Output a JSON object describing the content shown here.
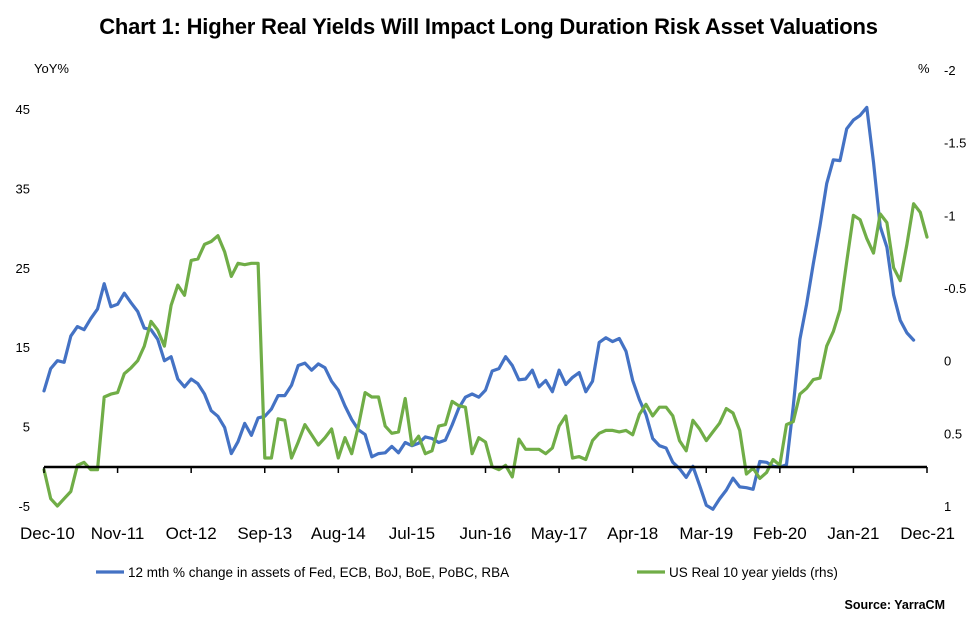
{
  "chart_data": {
    "type": "line",
    "title": "Chart 1: Higher Real Yields Will Impact Long Duration Risk Asset Valuations",
    "y_left_label": "YoY%",
    "y_right_label": "%",
    "y_left_range": [
      -5,
      50
    ],
    "y_left_ticks": [
      "45",
      "35",
      "25",
      "15",
      "5",
      "-5"
    ],
    "y_right_range_top_to_bottom": [
      -2,
      1
    ],
    "y_right_inverted": true,
    "y_right_ticks": [
      "-2",
      "-1.5",
      "-1",
      "-0.5",
      "0",
      "0.5",
      "1"
    ],
    "x_tick_labels": [
      "Dec-10",
      "Nov-11",
      "Oct-12",
      "Sep-13",
      "Aug-14",
      "Jul-15",
      "Jun-16",
      "May-17",
      "Apr-18",
      "Mar-19",
      "Feb-20",
      "Jan-21",
      "Dec-21"
    ],
    "x_axis_zero_line_at_left_value": 0,
    "legend_position": "bottom",
    "source": "Source: YarraCM",
    "series": [
      {
        "name": "12 mth % change in assets of Fed, ECB, BoJ, BoE, PoBC, RBA",
        "axis": "left",
        "color": "#4472C4",
        "x_months": [
          0,
          1,
          2,
          3,
          4,
          5,
          6,
          7,
          8,
          9,
          10,
          11,
          12,
          13,
          14,
          15,
          16,
          17,
          18,
          19,
          20,
          21,
          22,
          23,
          24,
          25,
          26,
          27,
          28,
          29,
          30,
          31,
          32,
          33,
          34,
          35,
          36,
          37,
          38,
          39,
          40,
          41,
          42,
          43,
          44,
          45,
          46,
          47,
          48,
          49,
          50,
          51,
          52,
          53,
          54,
          55,
          56,
          57,
          58,
          59,
          60,
          61,
          62,
          63,
          64,
          65,
          66,
          67,
          68,
          69,
          70,
          71,
          72,
          73,
          74,
          75,
          76,
          77,
          78,
          79,
          80,
          81,
          82,
          83,
          84,
          85,
          86,
          87,
          88,
          89,
          90,
          91,
          92,
          93,
          94,
          95,
          96,
          97,
          98,
          99,
          100,
          101,
          102,
          103,
          104,
          105,
          106,
          107,
          108,
          109,
          110,
          111,
          112,
          113,
          114,
          115,
          116,
          117,
          118,
          119,
          120,
          121,
          122,
          123,
          124,
          125,
          126,
          127,
          128,
          129,
          130
        ],
        "values": [
          9.5,
          12.3,
          13.3,
          13.1,
          16.4,
          17.6,
          17.2,
          18.6,
          19.8,
          23.0,
          20.1,
          20.4,
          21.8,
          20.6,
          19.5,
          17.4,
          17.2,
          16.0,
          13.3,
          13.8,
          11.0,
          10.0,
          11.0,
          10.4,
          9.1,
          7.0,
          6.3,
          4.9,
          1.6,
          3.1,
          5.4,
          3.9,
          6.1,
          6.3,
          7.2,
          8.9,
          8.9,
          10.2,
          12.7,
          13.0,
          12.1,
          12.9,
          12.4,
          10.7,
          9.6,
          7.6,
          5.9,
          4.6,
          4.0,
          1.2,
          1.6,
          1.7,
          2.5,
          1.7,
          3.0,
          2.6,
          2.9,
          3.7,
          3.5,
          3.0,
          3.3,
          5.2,
          7.3,
          8.7,
          9.1,
          8.7,
          9.6,
          12.0,
          12.3,
          13.8,
          12.7,
          10.9,
          11.0,
          12.1,
          10.0,
          10.8,
          9.4,
          12.1,
          10.3,
          11.2,
          11.8,
          9.4,
          10.7,
          15.6,
          16.2,
          15.7,
          16.1,
          14.5,
          10.8,
          8.4,
          6.5,
          3.5,
          2.6,
          2.3,
          0.5,
          -0.3,
          -1.4,
          0.0,
          -2.4,
          -4.9,
          -5.4,
          -4.1,
          -3.0,
          -1.5,
          -2.6,
          -2.7,
          -2.9,
          0.6,
          0.5,
          0.0,
          -0.1,
          0.2,
          7.5,
          16.0,
          20.4,
          25.5,
          30.3,
          35.6,
          38.6,
          38.5,
          42.5,
          43.6,
          44.2,
          45.2,
          38.3,
          30.2,
          27.6,
          21.6,
          18.4,
          16.8,
          15.9
        ]
      },
      {
        "name": "US Real 10 year yields (rhs)",
        "axis": "right",
        "color": "#70AD47",
        "x_months": [
          0,
          1,
          2,
          3,
          4,
          5,
          6,
          7,
          8,
          9,
          10,
          11,
          12,
          13,
          14,
          15,
          16,
          17,
          18,
          19,
          20,
          21,
          22,
          23,
          24,
          25,
          26,
          27,
          28,
          29,
          30,
          31,
          32,
          33,
          34,
          35,
          36,
          37,
          38,
          39,
          40,
          41,
          42,
          43,
          44,
          45,
          46,
          47,
          48,
          49,
          50,
          51,
          52,
          53,
          54,
          55,
          56,
          57,
          58,
          59,
          60,
          61,
          62,
          63,
          64,
          65,
          66,
          67,
          68,
          69,
          70,
          71,
          72,
          73,
          74,
          75,
          76,
          77,
          78,
          79,
          80,
          81,
          82,
          83,
          84,
          85,
          86,
          87,
          88,
          89,
          90,
          91,
          92,
          93,
          94,
          95,
          96,
          97,
          98,
          99,
          100,
          101,
          102,
          103,
          104,
          105,
          106,
          107,
          108,
          109,
          110,
          111,
          112,
          113,
          114,
          115,
          116,
          117,
          118,
          119,
          120,
          121,
          122,
          123,
          124,
          125,
          126,
          127,
          128,
          129,
          130,
          131,
          132
        ],
        "values": [
          0.75,
          0.95,
          1.0,
          0.95,
          0.9,
          0.72,
          0.7,
          0.75,
          0.75,
          0.25,
          0.23,
          0.22,
          0.09,
          0.05,
          0.0,
          -0.1,
          -0.27,
          -0.21,
          -0.1,
          -0.38,
          -0.52,
          -0.45,
          -0.69,
          -0.7,
          -0.8,
          -0.82,
          -0.86,
          -0.75,
          -0.58,
          -0.67,
          -0.66,
          -0.67,
          -0.67,
          0.67,
          0.67,
          0.4,
          0.41,
          0.67,
          0.56,
          0.44,
          0.51,
          0.58,
          0.53,
          0.47,
          0.67,
          0.53,
          0.64,
          0.45,
          0.22,
          0.25,
          0.25,
          0.45,
          0.5,
          0.49,
          0.26,
          0.58,
          0.52,
          0.64,
          0.62,
          0.45,
          0.44,
          0.28,
          0.31,
          0.32,
          0.64,
          0.53,
          0.56,
          0.73,
          0.75,
          0.72,
          0.8,
          0.54,
          0.61,
          0.61,
          0.61,
          0.64,
          0.6,
          0.45,
          0.38,
          0.67,
          0.66,
          0.68,
          0.55,
          0.5,
          0.48,
          0.48,
          0.49,
          0.48,
          0.51,
          0.37,
          0.3,
          0.38,
          0.32,
          0.32,
          0.38,
          0.55,
          0.62,
          0.41,
          0.47,
          0.55,
          0.49,
          0.43,
          0.33,
          0.36,
          0.48,
          0.78,
          0.74,
          0.81,
          0.77,
          0.68,
          0.72,
          0.44,
          0.42,
          0.23,
          0.19,
          0.13,
          0.12,
          -0.1,
          -0.2,
          -0.35,
          -0.68,
          -1.0,
          -0.97,
          -0.84,
          -0.74,
          -1.01,
          -0.95,
          -0.64,
          -0.55,
          -0.8,
          -1.08,
          -1.02,
          -0.85
        ]
      }
    ]
  }
}
